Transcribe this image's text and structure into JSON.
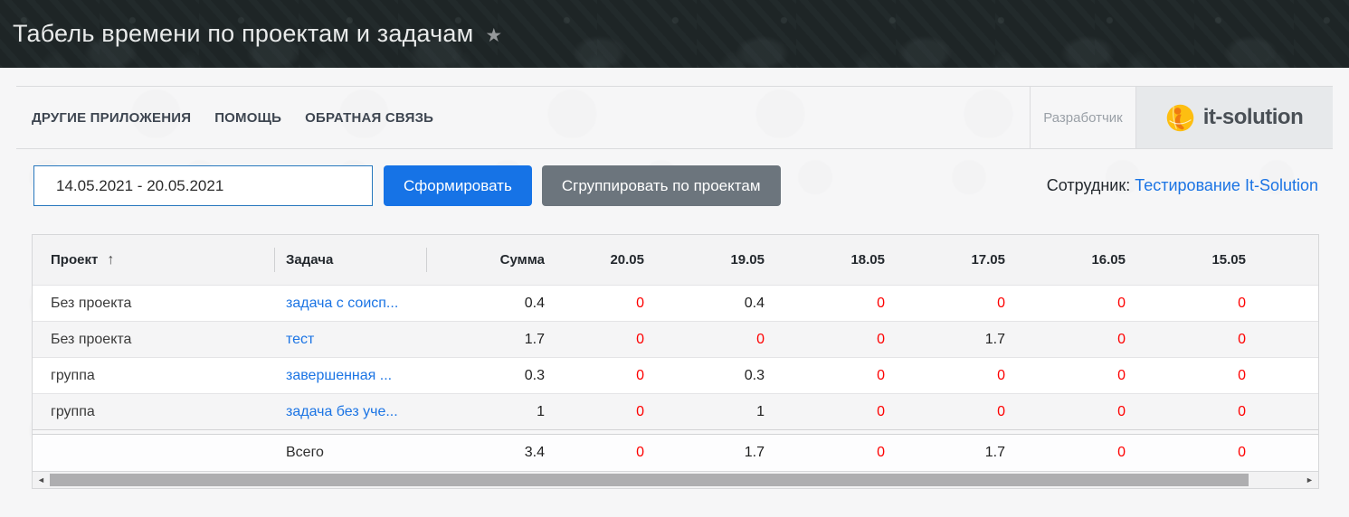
{
  "header": {
    "title": "Табель времени по проектам и задачам",
    "star_icon": "★"
  },
  "menu": {
    "items": [
      "ДРУГИЕ ПРИЛОЖЕНИЯ",
      "ПОМОЩЬ",
      "ОБРАТНАЯ СВЯЗЬ"
    ],
    "developer_label": "Разработчик",
    "logo_text": "it-solution"
  },
  "controls": {
    "date_range_value": "14.05.2021 - 20.05.2021",
    "generate_button": "Сформировать",
    "group_button": "Сгруппировать по проектам",
    "employee_label": "Сотрудник:",
    "employee_link": "Тестирование It-Solution"
  },
  "table": {
    "sort_icon": "↑",
    "columns": {
      "project": "Проект",
      "task": "Задача",
      "sum": "Сумма",
      "days": [
        "20.05",
        "19.05",
        "18.05",
        "17.05",
        "16.05",
        "15.05"
      ]
    },
    "rows": [
      {
        "project": "Без проекта",
        "task": "задача с соисп...",
        "sum": "0.4",
        "days": [
          "0",
          "0.4",
          "0",
          "0",
          "0",
          "0"
        ]
      },
      {
        "project": "Без проекта",
        "task": "тест",
        "sum": "1.7",
        "days": [
          "0",
          "0",
          "0",
          "1.7",
          "0",
          "0"
        ]
      },
      {
        "project": "группа",
        "task": "завершенная ...",
        "sum": "0.3",
        "days": [
          "0",
          "0.3",
          "0",
          "0",
          "0",
          "0"
        ]
      },
      {
        "project": "группа",
        "task": "задача без уче...",
        "sum": "1",
        "days": [
          "0",
          "1",
          "0",
          "0",
          "0",
          "0"
        ]
      }
    ],
    "total": {
      "label": "Всего",
      "sum": "3.4",
      "days": [
        "0",
        "1.7",
        "0",
        "1.7",
        "0",
        "0"
      ]
    }
  },
  "scrollbar": {
    "left_arrow": "◄",
    "right_arrow": "►"
  },
  "colors": {
    "accent_blue": "#1673e6",
    "secondary_gray": "#6c757d",
    "link_blue": "#1b74e4",
    "zero_red": "#fe0000",
    "titlebar_bg": "#1e2526",
    "logo_orange": "#ef7a10",
    "logo_yellow": "#fdbe11"
  }
}
